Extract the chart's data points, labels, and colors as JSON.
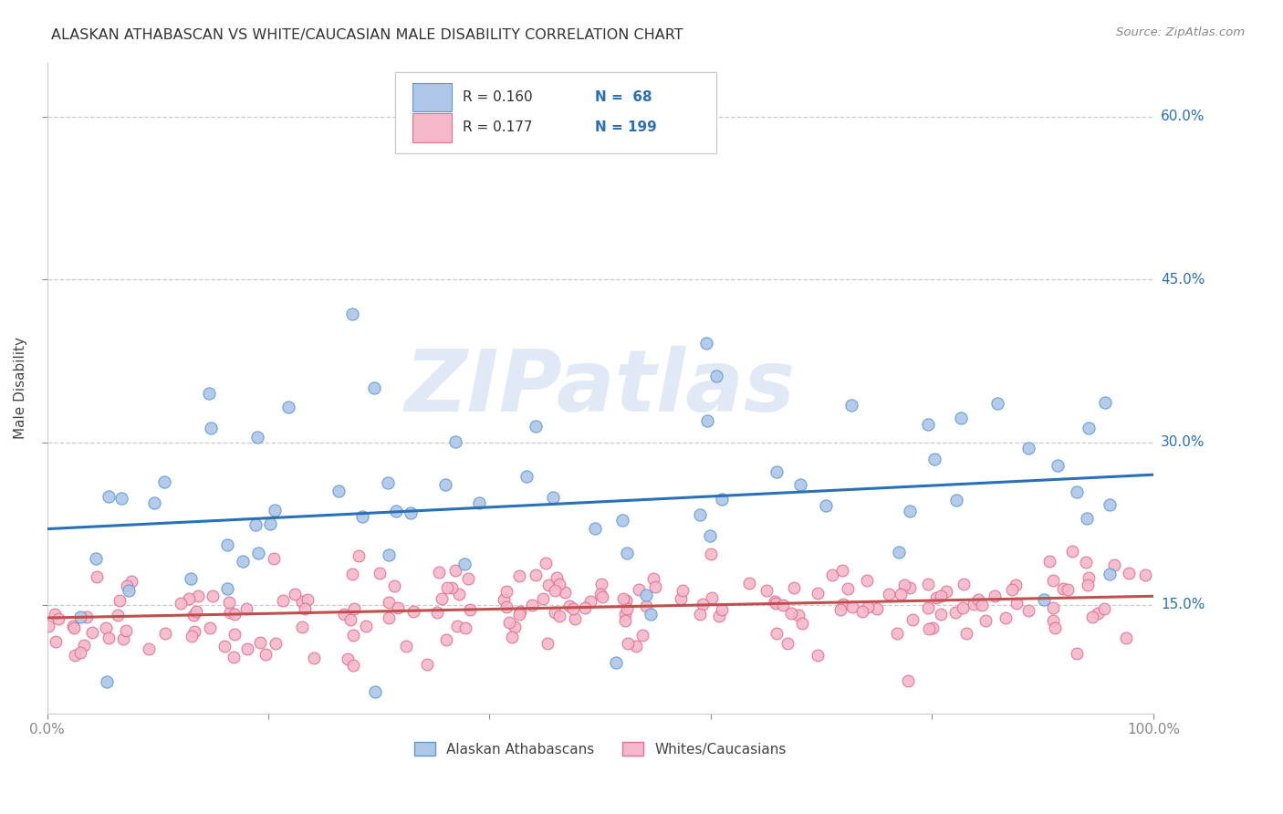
{
  "title": "ALASKAN ATHABASCAN VS WHITE/CAUCASIAN MALE DISABILITY CORRELATION CHART",
  "source": "Source: ZipAtlas.com",
  "ylabel": "Male Disability",
  "xlim": [
    0,
    100
  ],
  "ylim": [
    5,
    65
  ],
  "yticks": [
    15,
    30,
    45,
    60
  ],
  "ytick_labels": [
    "15.0%",
    "30.0%",
    "45.0%",
    "60.0%"
  ],
  "xtick_positions": [
    0,
    20,
    40,
    60,
    80,
    100
  ],
  "xtick_labels": [
    "0.0%",
    "",
    "",
    "",
    "",
    "100.0%"
  ],
  "blue_color": "#aec6e8",
  "pink_color": "#f4b8cb",
  "blue_edge_color": "#5b9bd5",
  "pink_edge_color": "#e07090",
  "blue_line_color": "#2970b8",
  "pink_line_color": "#c0504d",
  "text_color": "#2970b8",
  "watermark_text": "ZIPatlas",
  "background_color": "#ffffff",
  "grid_color": "#cccccc",
  "legend_r1": "R = 0.160",
  "legend_n1": "N =  68",
  "legend_r2": "R = 0.177",
  "legend_n2": "N = 199",
  "legend_label1": "Alaskan Athabascans",
  "legend_label2": "Whites/Caucasians",
  "blue_trend_x": [
    0,
    100
  ],
  "blue_trend_y": [
    22.0,
    27.0
  ],
  "pink_trend_x": [
    0,
    100
  ],
  "pink_trend_y": [
    13.8,
    15.8
  ],
  "blue_seed": 42,
  "pink_seed": 7,
  "n_blue": 68,
  "n_pink": 199
}
